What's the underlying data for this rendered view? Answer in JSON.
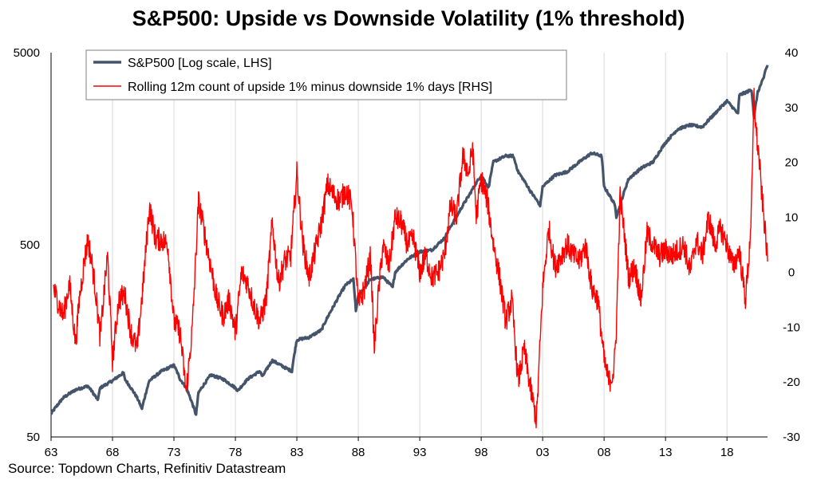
{
  "title": "S&P500: Upside vs Downside Volatility (1% threshold)",
  "source": "Source: Topdown Charts, Refinitiv Datastream",
  "colors": {
    "sp500": "#44546a",
    "count": "#ff0000",
    "grid": "#d9d9d9"
  },
  "chart_data": {
    "type": "line",
    "title": "S&P500: Upside vs Downside Volatility (1% threshold)",
    "xlabel": "",
    "ylabel": "",
    "y2label": "",
    "x_ticks": [
      "63",
      "68",
      "73",
      "78",
      "83",
      "88",
      "93",
      "98",
      "03",
      "08",
      "13",
      "18"
    ],
    "x_tick_years": [
      1963,
      1968,
      1973,
      1978,
      1983,
      1988,
      1993,
      1998,
      2003,
      2008,
      2013,
      2018
    ],
    "xlim": [
      1963,
      2021.3
    ],
    "y_left": {
      "scale": "log",
      "ylim": [
        50,
        5000
      ],
      "ticks": [
        5000,
        500,
        50
      ],
      "tick_labels": [
        "5000",
        "500",
        "50"
      ]
    },
    "y_right": {
      "scale": "linear",
      "ylim": [
        -30,
        40
      ],
      "ticks": [
        40,
        30,
        20,
        10,
        0,
        -10,
        -20,
        -30
      ],
      "tick_labels": [
        "40",
        "30",
        "20",
        "10",
        "0",
        "-10",
        "-20",
        "-30"
      ]
    },
    "grid": "vertical",
    "legend_position": "top-left",
    "series": [
      {
        "name": "S&P500 [Log scale, LHS]",
        "axis": "left",
        "x": [
          1963,
          1964,
          1965,
          1966,
          1966.8,
          1967,
          1968,
          1968.9,
          1969,
          1970,
          1970.4,
          1971,
          1972,
          1973,
          1973.5,
          1974,
          1974.8,
          1975,
          1976,
          1977,
          1978,
          1978.2,
          1979,
          1980,
          1980.2,
          1981,
          1982,
          1982.6,
          1983,
          1984,
          1985,
          1986,
          1987,
          1987.6,
          1987.8,
          1988,
          1989,
          1990,
          1990.8,
          1991,
          1992,
          1993,
          1994,
          1995,
          1996,
          1997,
          1998,
          1998.6,
          1999,
          2000,
          2000.6,
          2001,
          2002,
          2002.8,
          2003,
          2004,
          2005,
          2006,
          2007,
          2007.8,
          2008,
          2008.9,
          2009,
          2009.3,
          2010,
          2011,
          2012,
          2013,
          2014,
          2015,
          2016,
          2017,
          2018,
          2018.9,
          2019,
          2020,
          2020.2,
          2020.5,
          2021,
          2021.1,
          2021.3
        ],
        "y": [
          66,
          80,
          88,
          92,
          78,
          90,
          98,
          108,
          100,
          80,
          70,
          98,
          110,
          118,
          100,
          90,
          65,
          85,
          105,
          100,
          90,
          87,
          100,
          110,
          103,
          125,
          115,
          110,
          160,
          165,
          180,
          240,
          310,
          330,
          225,
          270,
          330,
          340,
          300,
          360,
          420,
          460,
          470,
          540,
          700,
          900,
          1150,
          990,
          1350,
          1450,
          1450,
          1200,
          950,
          800,
          1000,
          1150,
          1200,
          1350,
          1500,
          1450,
          1000,
          800,
          700,
          800,
          1100,
          1250,
          1350,
          1700,
          2000,
          2100,
          2050,
          2400,
          2800,
          2400,
          3000,
          3200,
          2300,
          3100,
          3700,
          4000,
          4300
        ]
      },
      {
        "name": "Rolling 12m count of upside 1% minus downside 1% days [RHS]",
        "axis": "right",
        "x": [
          1963.2,
          1963.5,
          1964,
          1964.5,
          1965,
          1965.3,
          1965.7,
          1966,
          1966.3,
          1966.6,
          1967,
          1967.3,
          1967.6,
          1968,
          1968.5,
          1969,
          1969.5,
          1970,
          1970.5,
          1971,
          1971.5,
          1972,
          1972.5,
          1973,
          1973.5,
          1974,
          1974.5,
          1975,
          1975.5,
          1976,
          1976.5,
          1977,
          1977.5,
          1978,
          1978.5,
          1979,
          1979.5,
          1980,
          1980.5,
          1981,
          1981.5,
          1982,
          1982.5,
          1983,
          1983.5,
          1984,
          1984.5,
          1985,
          1985.5,
          1986,
          1986.5,
          1987,
          1987.5,
          1988,
          1988.5,
          1989,
          1989.3,
          1989.6,
          1990,
          1990.5,
          1991,
          1991.5,
          1992,
          1992.5,
          1993,
          1993.5,
          1994,
          1994.5,
          1995,
          1995.5,
          1996,
          1996.5,
          1997,
          1997.3,
          1997.6,
          1998,
          1998.5,
          1999,
          1999.5,
          2000,
          2000.5,
          2001,
          2001.5,
          2002,
          2002.5,
          2003,
          2003.5,
          2004,
          2004.5,
          2005,
          2005.5,
          2006,
          2006.5,
          2007,
          2007.5,
          2008,
          2008.4,
          2008.8,
          2009,
          2009.3,
          2009.6,
          2010,
          2010.5,
          2011,
          2011.5,
          2012,
          2012.5,
          2013,
          2013.5,
          2014,
          2014.5,
          2015,
          2015.5,
          2016,
          2016.5,
          2017,
          2017.5,
          2018,
          2018.5,
          2019,
          2019.5,
          2019.8,
          2020,
          2020.2,
          2020.4,
          2020.6,
          2020.8,
          2021,
          2021.2,
          2021.3
        ],
        "y": [
          -3,
          -5,
          -8,
          -2,
          -13,
          -5,
          2,
          6,
          2,
          -3,
          -12,
          -4,
          3,
          -16,
          -5,
          -4,
          -11,
          -14,
          -2,
          12,
          6,
          6,
          5,
          -9,
          -11,
          -22,
          -10,
          13,
          7,
          1,
          -5,
          -8,
          -5,
          -11,
          0,
          -2,
          -6,
          -9,
          -5,
          9,
          -2,
          2,
          3,
          18,
          5,
          -1,
          4,
          9,
          16,
          14,
          13,
          15,
          12,
          -6,
          -3,
          3,
          -14,
          -5,
          5,
          1,
          10,
          9,
          5,
          6,
          0,
          3,
          -1,
          0,
          3,
          12,
          10,
          21,
          18,
          23,
          10,
          17,
          13,
          5,
          -1,
          -9,
          -5,
          -20,
          -14,
          -21,
          -27,
          -3,
          8,
          1,
          3,
          5,
          3,
          2,
          5,
          -3,
          -5,
          -16,
          -20,
          -18,
          -10,
          14,
          8,
          -1,
          1,
          -5,
          7,
          5,
          3,
          4,
          3,
          4,
          5,
          0,
          6,
          3,
          10,
          5,
          8,
          5,
          1,
          4,
          -5,
          3,
          12,
          32,
          25,
          21,
          15,
          10,
          5,
          2
        ]
      }
    ]
  }
}
